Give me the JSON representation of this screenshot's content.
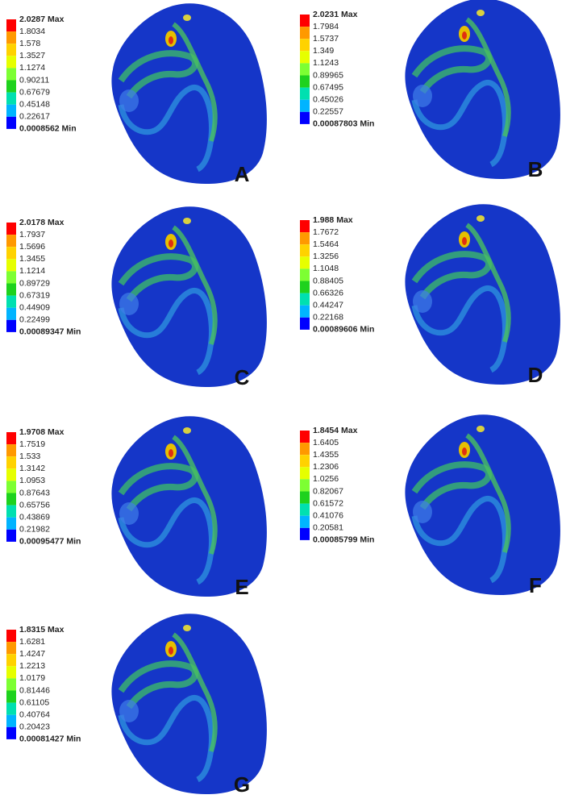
{
  "panels": [
    {
      "label": "A",
      "legend": [
        "2.0287 Max",
        "1.8034",
        "1.578",
        "1.3527",
        "1.1274",
        "0.90211",
        "0.67679",
        "0.45148",
        "0.22617",
        "0.0008562 Min"
      ]
    },
    {
      "label": "B",
      "legend": [
        "2.0231 Max",
        "1.7984",
        "1.5737",
        "1.349",
        "1.1243",
        "0.89965",
        "0.67495",
        "0.45026",
        "0.22557",
        "0.00087803 Min"
      ]
    },
    {
      "label": "C",
      "legend": [
        "2.0178 Max",
        "1.7937",
        "1.5696",
        "1.3455",
        "1.1214",
        "0.89729",
        "0.67319",
        "0.44909",
        "0.22499",
        "0.00089347 Min"
      ]
    },
    {
      "label": "D",
      "legend": [
        "1.988 Max",
        "1.7672",
        "1.5464",
        "1.3256",
        "1.1048",
        "0.88405",
        "0.66326",
        "0.44247",
        "0.22168",
        "0.00089606 Min"
      ]
    },
    {
      "label": "E",
      "legend": [
        "1.9708 Max",
        "1.7519",
        "1.533",
        "1.3142",
        "1.0953",
        "0.87643",
        "0.65756",
        "0.43869",
        "0.21982",
        "0.00095477 Min"
      ]
    },
    {
      "label": "F",
      "legend": [
        "1.8454 Max",
        "1.6405",
        "1.4355",
        "1.2306",
        "1.0256",
        "0.82067",
        "0.61572",
        "0.41076",
        "0.20581",
        "0.00085799 Min"
      ]
    },
    {
      "label": "G",
      "legend": [
        "1.8315 Max",
        "1.6281",
        "1.4247",
        "1.2213",
        "1.0179",
        "0.81446",
        "0.61105",
        "0.40764",
        "0.20423",
        "0.00081427 Min"
      ]
    }
  ]
}
